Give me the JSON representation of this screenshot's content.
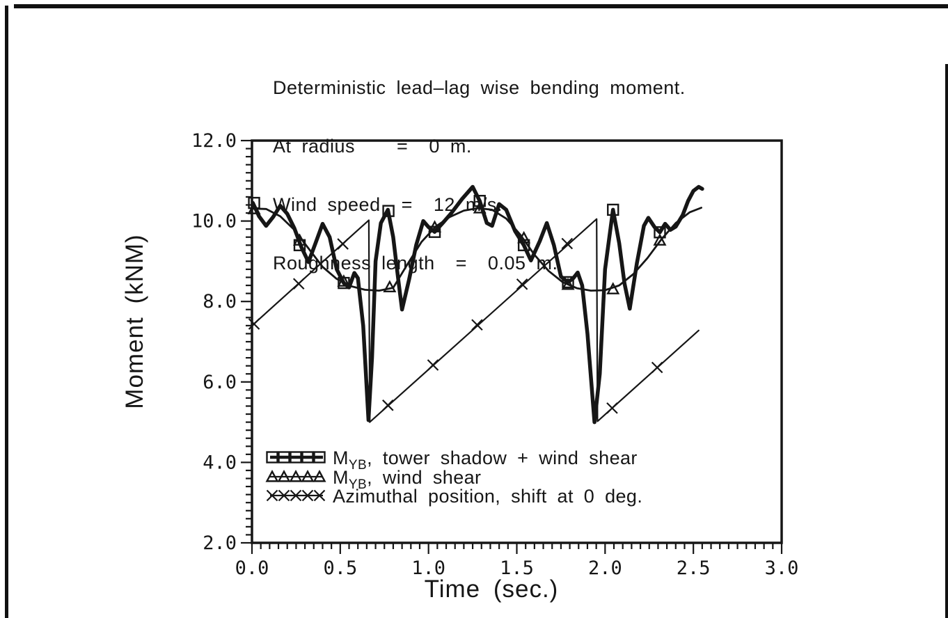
{
  "figure": {
    "background": "#ffffff",
    "ink_color": "#161616"
  },
  "header": {
    "title_lines": [
      "Deterministic lead–lag wise bending moment.",
      "At radius    =  0 m.",
      "Wind speed  =  12 m/s.",
      "Roughness length  =  0.05 m."
    ]
  },
  "chart_data": {
    "type": "line",
    "title": "Deterministic lead–lag wise bending moment.",
    "annotations": [
      "At radius = 0 m.",
      "Wind speed = 12 m/s.",
      "Roughness length = 0.05 m."
    ],
    "xlabel": "Time  (sec.)",
    "ylabel": "Moment  (kNM)",
    "xlim": [
      0.0,
      3.0
    ],
    "ylim": [
      2.0,
      12.0
    ],
    "x_major_ticks": [
      0.0,
      0.5,
      1.0,
      1.5,
      2.0,
      2.5,
      3.0
    ],
    "x_tick_labels": [
      "0.0",
      "0.5",
      "1.0",
      "1.5",
      "2.0",
      "2.5",
      "3.0"
    ],
    "x_minor_step": 0.05,
    "y_major_ticks": [
      2.0,
      4.0,
      6.0,
      8.0,
      10.0,
      12.0
    ],
    "y_tick_labels": [
      "2.0",
      "4.0",
      "6.0",
      "8.0",
      "10.0",
      "12.0"
    ],
    "y_minor_step": 0.2,
    "grid": false,
    "legend_position": "inside-bottom-left",
    "series": [
      {
        "name": "MYB, tower shadow + wind shear",
        "legend": {
          "prefix": "M",
          "subscript": "YB",
          "suffix": ", tower shadow + wind shear"
        },
        "marker": "square",
        "line_width": 5.5,
        "points": [
          [
            0.005,
            10.45
          ],
          [
            0.04,
            10.12
          ],
          [
            0.08,
            9.88
          ],
          [
            0.12,
            10.1
          ],
          [
            0.16,
            10.38
          ],
          [
            0.2,
            10.18
          ],
          [
            0.24,
            9.82
          ],
          [
            0.28,
            9.35
          ],
          [
            0.32,
            8.98
          ],
          [
            0.36,
            9.45
          ],
          [
            0.4,
            9.93
          ],
          [
            0.44,
            9.6
          ],
          [
            0.48,
            8.8
          ],
          [
            0.52,
            8.46
          ],
          [
            0.55,
            8.35
          ],
          [
            0.58,
            8.71
          ],
          [
            0.6,
            8.58
          ],
          [
            0.63,
            7.4
          ],
          [
            0.66,
            5.05
          ],
          [
            0.68,
            6.6
          ],
          [
            0.7,
            9.0
          ],
          [
            0.73,
            9.95
          ],
          [
            0.77,
            10.28
          ],
          [
            0.8,
            9.6
          ],
          [
            0.83,
            8.5
          ],
          [
            0.85,
            7.8
          ],
          [
            0.89,
            8.55
          ],
          [
            0.93,
            9.4
          ],
          [
            0.97,
            10.0
          ],
          [
            1.0,
            9.85
          ],
          [
            1.035,
            9.73
          ],
          [
            1.08,
            9.95
          ],
          [
            1.13,
            10.2
          ],
          [
            1.19,
            10.55
          ],
          [
            1.25,
            10.85
          ],
          [
            1.29,
            10.5
          ],
          [
            1.33,
            9.95
          ],
          [
            1.36,
            9.88
          ],
          [
            1.4,
            10.42
          ],
          [
            1.44,
            10.28
          ],
          [
            1.49,
            9.75
          ],
          [
            1.54,
            9.4
          ],
          [
            1.58,
            9.02
          ],
          [
            1.63,
            9.5
          ],
          [
            1.67,
            9.95
          ],
          [
            1.71,
            9.4
          ],
          [
            1.75,
            8.62
          ],
          [
            1.79,
            8.48
          ],
          [
            1.82,
            8.58
          ],
          [
            1.845,
            8.72
          ],
          [
            1.87,
            8.4
          ],
          [
            1.9,
            7.2
          ],
          [
            1.94,
            5.0
          ],
          [
            1.97,
            6.2
          ],
          [
            2.0,
            8.8
          ],
          [
            2.045,
            10.28
          ],
          [
            2.08,
            9.45
          ],
          [
            2.11,
            8.45
          ],
          [
            2.14,
            7.82
          ],
          [
            2.18,
            8.95
          ],
          [
            2.22,
            9.88
          ],
          [
            2.245,
            10.08
          ],
          [
            2.28,
            9.85
          ],
          [
            2.31,
            9.72
          ],
          [
            2.34,
            9.93
          ],
          [
            2.37,
            9.78
          ],
          [
            2.4,
            9.86
          ],
          [
            2.44,
            10.15
          ],
          [
            2.47,
            10.5
          ],
          [
            2.5,
            10.75
          ],
          [
            2.53,
            10.85
          ],
          [
            2.55,
            10.8
          ]
        ],
        "marker_points": [
          [
            0.012,
            10.45
          ],
          [
            0.27,
            9.4
          ],
          [
            0.52,
            8.46
          ],
          [
            0.773,
            10.25
          ],
          [
            1.035,
            9.73
          ],
          [
            1.29,
            10.5
          ],
          [
            1.54,
            9.4
          ],
          [
            1.79,
            8.48
          ],
          [
            2.045,
            10.28
          ],
          [
            2.31,
            9.72
          ]
        ]
      },
      {
        "name": "MYB, wind shear",
        "legend": {
          "prefix": "M",
          "subscript": "YB",
          "suffix": ", wind shear"
        },
        "marker": "triangle",
        "line_width": 2.8,
        "points": [
          [
            0.005,
            10.31
          ],
          [
            0.08,
            10.3
          ],
          [
            0.16,
            10.12
          ],
          [
            0.24,
            9.78
          ],
          [
            0.32,
            9.32
          ],
          [
            0.4,
            8.86
          ],
          [
            0.48,
            8.56
          ],
          [
            0.56,
            8.38
          ],
          [
            0.64,
            8.29
          ],
          [
            0.72,
            8.27
          ],
          [
            0.8,
            8.34
          ],
          [
            0.88,
            8.92
          ],
          [
            0.96,
            9.48
          ],
          [
            1.04,
            9.86
          ],
          [
            1.12,
            10.1
          ],
          [
            1.2,
            10.26
          ],
          [
            1.28,
            10.32
          ],
          [
            1.36,
            10.28
          ],
          [
            1.44,
            10.06
          ],
          [
            1.52,
            9.66
          ],
          [
            1.6,
            9.16
          ],
          [
            1.68,
            8.76
          ],
          [
            1.76,
            8.48
          ],
          [
            1.84,
            8.33
          ],
          [
            1.92,
            8.27
          ],
          [
            2.0,
            8.28
          ],
          [
            2.08,
            8.4
          ],
          [
            2.16,
            8.68
          ],
          [
            2.24,
            9.08
          ],
          [
            2.32,
            9.55
          ],
          [
            2.4,
            9.95
          ],
          [
            2.48,
            10.22
          ],
          [
            2.545,
            10.33
          ]
        ],
        "marker_points": [
          [
            0.012,
            10.3
          ],
          [
            0.27,
            9.52
          ],
          [
            0.52,
            8.5
          ],
          [
            0.78,
            8.36
          ],
          [
            1.035,
            9.85
          ],
          [
            1.29,
            10.32
          ],
          [
            1.54,
            9.58
          ],
          [
            1.79,
            8.42
          ],
          [
            2.045,
            8.31
          ],
          [
            2.31,
            9.52
          ]
        ]
      },
      {
        "name": "Azimuthal position, shift at 0 deg.",
        "legend": {
          "prefix": "",
          "subscript": "",
          "suffix": "Azimuthal position, shift at 0 deg."
        },
        "marker": "x",
        "line_width": 2.2,
        "points": [
          [
            0.0,
            7.4
          ],
          [
            0.662,
            10.02
          ],
          [
            0.667,
            5.0
          ],
          [
            1.952,
            10.05
          ],
          [
            1.957,
            5.02
          ],
          [
            2.53,
            7.28
          ]
        ],
        "marker_points": [
          [
            0.012,
            7.44
          ],
          [
            0.265,
            8.44
          ],
          [
            0.515,
            9.43
          ],
          [
            0.77,
            5.42
          ],
          [
            1.025,
            6.42
          ],
          [
            1.275,
            7.42
          ],
          [
            1.53,
            8.43
          ],
          [
            1.785,
            9.44
          ],
          [
            2.04,
            5.35
          ],
          [
            2.295,
            6.36
          ]
        ]
      }
    ]
  }
}
